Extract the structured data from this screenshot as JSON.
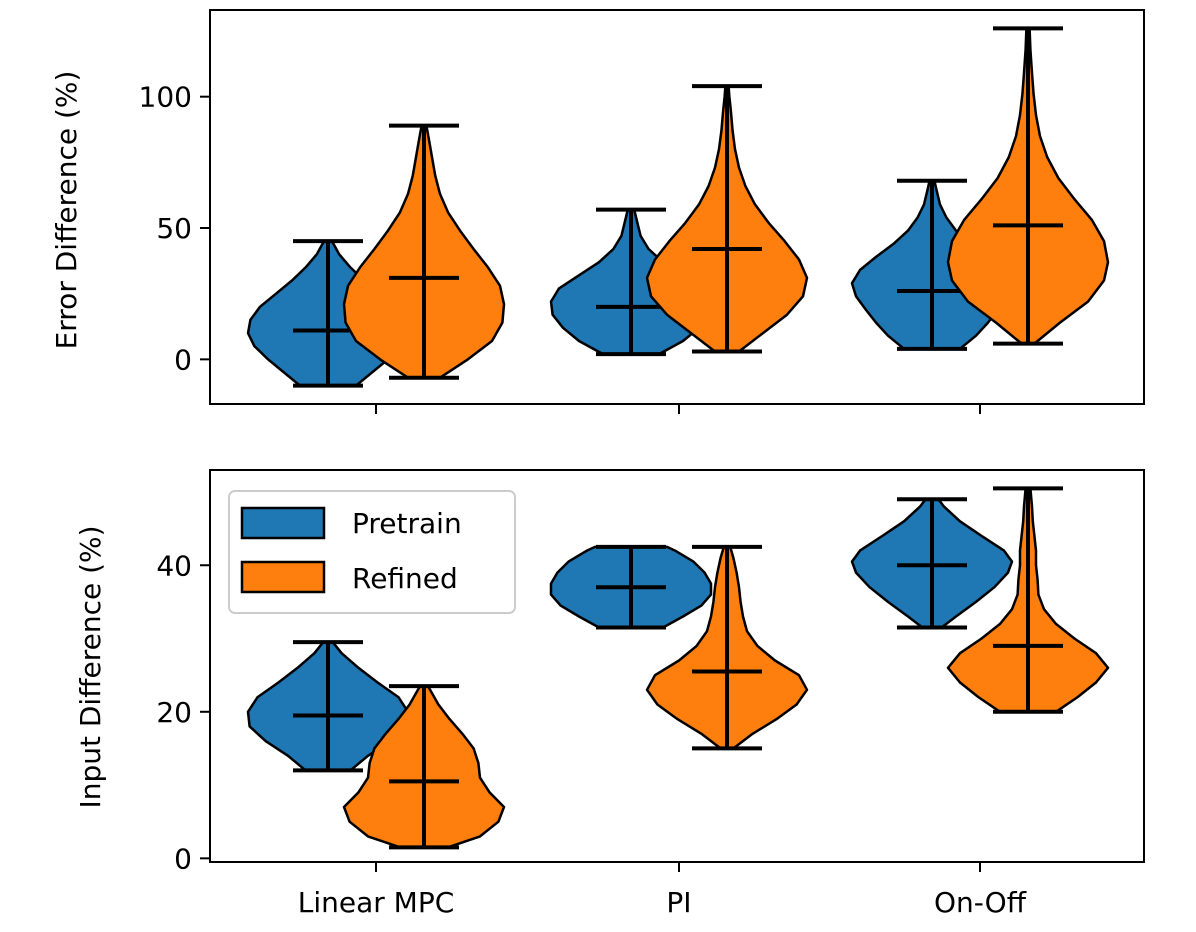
{
  "chart_data": [
    {
      "type": "violin",
      "panel": "top",
      "ylabel": "Error Difference (%)",
      "xlabel": "",
      "ylim": [
        -17,
        133
      ],
      "yticks": [
        0,
        50,
        100
      ],
      "ytick_labels": [
        "0",
        "50",
        "100"
      ],
      "categories": [
        "Linear MPC",
        "PI",
        "On-Off"
      ],
      "show_xtick_labels": false,
      "series": [
        {
          "name": "Pretrain",
          "color": "#1f77b4",
          "groups": [
            {
              "min": -10,
              "max": 45,
              "mean": 11,
              "profile": [
                [
                  -10,
                  0.35
                ],
                [
                  -5,
                  0.55
                ],
                [
                  0,
                  0.75
                ],
                [
                  5,
                  0.92
                ],
                [
                  10,
                  1.0
                ],
                [
                  15,
                  0.97
                ],
                [
                  20,
                  0.85
                ],
                [
                  25,
                  0.65
                ],
                [
                  30,
                  0.45
                ],
                [
                  35,
                  0.28
                ],
                [
                  40,
                  0.14
                ],
                [
                  45,
                  0.05
                ]
              ]
            },
            {
              "min": 2,
              "max": 57,
              "mean": 20,
              "profile": [
                [
                  2,
                  0.35
                ],
                [
                  7,
                  0.65
                ],
                [
                  12,
                  0.85
                ],
                [
                  17,
                  0.98
                ],
                [
                  22,
                  1.0
                ],
                [
                  27,
                  0.9
                ],
                [
                  32,
                  0.65
                ],
                [
                  37,
                  0.4
                ],
                [
                  42,
                  0.22
                ],
                [
                  47,
                  0.12
                ],
                [
                  52,
                  0.08
                ],
                [
                  57,
                  0.04
                ]
              ]
            },
            {
              "min": 4,
              "max": 68,
              "mean": 26,
              "profile": [
                [
                  4,
                  0.35
                ],
                [
                  9,
                  0.55
                ],
                [
                  14,
                  0.7
                ],
                [
                  19,
                  0.83
                ],
                [
                  24,
                  0.95
                ],
                [
                  29,
                  1.0
                ],
                [
                  34,
                  0.9
                ],
                [
                  39,
                  0.7
                ],
                [
                  44,
                  0.48
                ],
                [
                  49,
                  0.3
                ],
                [
                  54,
                  0.18
                ],
                [
                  59,
                  0.1
                ],
                [
                  64,
                  0.06
                ],
                [
                  68,
                  0.03
                ]
              ]
            }
          ]
        },
        {
          "name": "Refined",
          "color": "#ff7f0e",
          "groups": [
            {
              "min": -7,
              "max": 89,
              "mean": 31,
              "profile": [
                [
                  -7,
                  0.2
                ],
                [
                  0,
                  0.55
                ],
                [
                  7,
                  0.85
                ],
                [
                  14,
                  0.98
                ],
                [
                  21,
                  1.0
                ],
                [
                  28,
                  0.95
                ],
                [
                  35,
                  0.8
                ],
                [
                  42,
                  0.62
                ],
                [
                  49,
                  0.45
                ],
                [
                  56,
                  0.3
                ],
                [
                  63,
                  0.2
                ],
                [
                  70,
                  0.14
                ],
                [
                  77,
                  0.1
                ],
                [
                  84,
                  0.06
                ],
                [
                  89,
                  0.03
                ]
              ]
            },
            {
              "min": 3,
              "max": 104,
              "mean": 42,
              "profile": [
                [
                  3,
                  0.15
                ],
                [
                  10,
                  0.45
                ],
                [
                  17,
                  0.75
                ],
                [
                  24,
                  0.95
                ],
                [
                  31,
                  1.0
                ],
                [
                  38,
                  0.9
                ],
                [
                  45,
                  0.72
                ],
                [
                  52,
                  0.52
                ],
                [
                  59,
                  0.35
                ],
                [
                  66,
                  0.23
                ],
                [
                  73,
                  0.15
                ],
                [
                  80,
                  0.1
                ],
                [
                  87,
                  0.07
                ],
                [
                  94,
                  0.05
                ],
                [
                  100,
                  0.03
                ],
                [
                  104,
                  0.02
                ]
              ]
            },
            {
              "min": 6,
              "max": 126,
              "mean": 51,
              "profile": [
                [
                  6,
                  0.08
                ],
                [
                  14,
                  0.4
                ],
                [
                  22,
                  0.75
                ],
                [
                  30,
                  0.95
                ],
                [
                  37,
                  1.0
                ],
                [
                  45,
                  0.95
                ],
                [
                  53,
                  0.8
                ],
                [
                  61,
                  0.58
                ],
                [
                  69,
                  0.38
                ],
                [
                  77,
                  0.24
                ],
                [
                  85,
                  0.15
                ],
                [
                  93,
                  0.1
                ],
                [
                  101,
                  0.07
                ],
                [
                  109,
                  0.05
                ],
                [
                  118,
                  0.03
                ],
                [
                  126,
                  0.02
                ]
              ]
            }
          ]
        }
      ]
    },
    {
      "type": "violin",
      "panel": "bottom",
      "ylabel": "Input Difference (%)",
      "xlabel": "",
      "ylim": [
        -0.5,
        53
      ],
      "yticks": [
        0,
        20,
        40
      ],
      "ytick_labels": [
        "0",
        "20",
        "40"
      ],
      "categories": [
        "Linear MPC",
        "PI",
        "On-Off"
      ],
      "show_xtick_labels": true,
      "legend": {
        "position": "upper-left",
        "entries": [
          "Pretrain",
          "Refined"
        ]
      },
      "series": [
        {
          "name": "Pretrain",
          "color": "#1f77b4",
          "groups": [
            {
              "min": 12,
              "max": 29.5,
              "mean": 19.5,
              "profile": [
                [
                  12,
                  0.28
                ],
                [
                  14,
                  0.5
                ],
                [
                  16,
                  0.78
                ],
                [
                  18,
                  0.98
                ],
                [
                  20,
                  1.0
                ],
                [
                  22,
                  0.88
                ],
                [
                  24,
                  0.62
                ],
                [
                  26,
                  0.38
                ],
                [
                  28,
                  0.17
                ],
                [
                  29.5,
                  0.06
                ]
              ]
            },
            {
              "min": 31.5,
              "max": 42.5,
              "mean": 37,
              "profile": [
                [
                  31.5,
                  0.4
                ],
                [
                  33,
                  0.65
                ],
                [
                  34.5,
                  0.88
                ],
                [
                  36,
                  1.0
                ],
                [
                  37.5,
                  1.0
                ],
                [
                  39,
                  0.92
                ],
                [
                  40.5,
                  0.78
                ],
                [
                  42,
                  0.55
                ],
                [
                  42.5,
                  0.45
                ]
              ]
            },
            {
              "min": 31.5,
              "max": 49,
              "mean": 40,
              "profile": [
                [
                  31.5,
                  0.12
                ],
                [
                  33,
                  0.3
                ],
                [
                  35,
                  0.55
                ],
                [
                  37,
                  0.78
                ],
                [
                  39,
                  0.95
                ],
                [
                  40.5,
                  1.0
                ],
                [
                  42,
                  0.9
                ],
                [
                  44,
                  0.62
                ],
                [
                  46,
                  0.35
                ],
                [
                  48,
                  0.15
                ],
                [
                  49,
                  0.08
                ]
              ]
            }
          ]
        },
        {
          "name": "Refined",
          "color": "#ff7f0e",
          "groups": [
            {
              "min": 1.5,
              "max": 23.5,
              "mean": 10.5,
              "profile": [
                [
                  1.5,
                  0.3
                ],
                [
                  3,
                  0.7
                ],
                [
                  5,
                  0.93
                ],
                [
                  7,
                  1.0
                ],
                [
                  9,
                  0.82
                ],
                [
                  11,
                  0.7
                ],
                [
                  13,
                  0.68
                ],
                [
                  15,
                  0.62
                ],
                [
                  17,
                  0.48
                ],
                [
                  19,
                  0.32
                ],
                [
                  21,
                  0.18
                ],
                [
                  23.5,
                  0.05
                ]
              ]
            },
            {
              "min": 15,
              "max": 42.5,
              "mean": 25.5,
              "profile": [
                [
                  15,
                  0.08
                ],
                [
                  17,
                  0.32
                ],
                [
                  19,
                  0.62
                ],
                [
                  21,
                  0.87
                ],
                [
                  23,
                  1.0
                ],
                [
                  25,
                  0.9
                ],
                [
                  27,
                  0.6
                ],
                [
                  29,
                  0.38
                ],
                [
                  31,
                  0.25
                ],
                [
                  33,
                  0.2
                ],
                [
                  35,
                  0.17
                ],
                [
                  37,
                  0.15
                ],
                [
                  39,
                  0.12
                ],
                [
                  41,
                  0.08
                ],
                [
                  42.5,
                  0.04
                ]
              ]
            },
            {
              "min": 20,
              "max": 50.5,
              "mean": 29,
              "profile": [
                [
                  20,
                  0.35
                ],
                [
                  22,
                  0.62
                ],
                [
                  24,
                  0.85
                ],
                [
                  26,
                  1.0
                ],
                [
                  28,
                  0.85
                ],
                [
                  30,
                  0.58
                ],
                [
                  32,
                  0.35
                ],
                [
                  34,
                  0.2
                ],
                [
                  36,
                  0.13
                ],
                [
                  38,
                  0.12
                ],
                [
                  40,
                  0.1
                ],
                [
                  42,
                  0.1
                ],
                [
                  44,
                  0.08
                ],
                [
                  46,
                  0.06
                ],
                [
                  48,
                  0.05
                ],
                [
                  50.5,
                  0.03
                ]
              ]
            }
          ]
        }
      ]
    }
  ]
}
